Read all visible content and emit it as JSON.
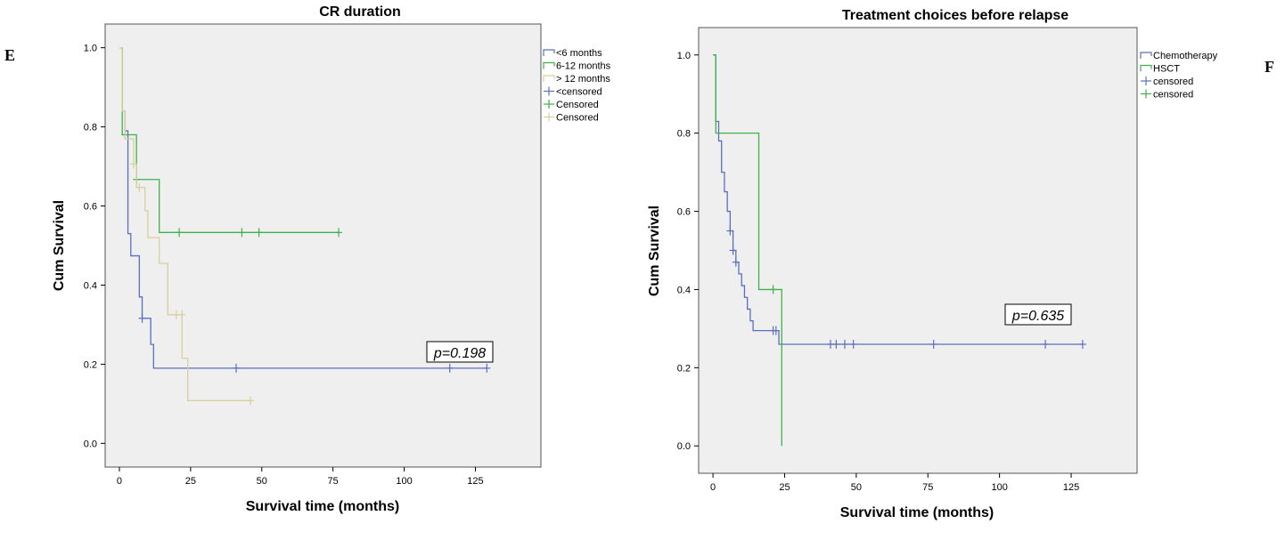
{
  "panels": {
    "left_letter": "E",
    "right_letter": "F"
  },
  "chart_data": [
    {
      "type": "line",
      "title": "CR duration",
      "xlabel": "Survival time (months)",
      "ylabel": "Cum Survival",
      "xlim": [
        -5,
        148
      ],
      "ylim": [
        -0.06,
        1.06
      ],
      "xticks": [
        0,
        25,
        50,
        75,
        100,
        125
      ],
      "yticks": [
        0.0,
        0.2,
        0.4,
        0.6,
        0.8,
        1.0
      ],
      "ytick_labels": [
        "0.0",
        "0.2",
        "0.4",
        "0.6",
        "0.8",
        "1.0"
      ],
      "annotation": "p=0.198",
      "annotation_pos": [
        130,
        0.21
      ],
      "legend_position": "right",
      "legend": [
        "<6 months",
        "6-12 months",
        "> 12 months",
        "<censored",
        "Censored",
        "Censored"
      ],
      "series": [
        {
          "name": "<6 months",
          "color": "#5b6fbf",
          "steps": [
            [
              0,
              1.0
            ],
            [
              1,
              0.84
            ],
            [
              2,
              0.79
            ],
            [
              3,
              0.53
            ],
            [
              4,
              0.474
            ],
            [
              7,
              0.37
            ],
            [
              8,
              0.316
            ],
            [
              11,
              0.25
            ],
            [
              12,
              0.19
            ],
            [
              129,
              0.19
            ]
          ],
          "censored": [
            [
              8,
              0.316
            ],
            [
              41,
              0.19
            ],
            [
              116,
              0.19
            ],
            [
              129,
              0.19
            ]
          ]
        },
        {
          "name": "6-12 months",
          "color": "#3fb14a",
          "steps": [
            [
              0,
              1.0
            ],
            [
              1,
              0.78
            ],
            [
              6,
              0.667
            ],
            [
              14,
              0.533
            ],
            [
              77,
              0.533
            ]
          ],
          "censored": [
            [
              2,
              0.78
            ],
            [
              6,
              0.667
            ],
            [
              21,
              0.533
            ],
            [
              43,
              0.533
            ],
            [
              49,
              0.533
            ],
            [
              77,
              0.533
            ]
          ]
        },
        {
          "name": "> 12 months",
          "color": "#d8cf9e",
          "steps": [
            [
              0,
              1.0
            ],
            [
              1,
              0.84
            ],
            [
              2,
              0.77
            ],
            [
              5,
              0.706
            ],
            [
              6,
              0.647
            ],
            [
              9,
              0.588
            ],
            [
              10,
              0.52
            ],
            [
              14,
              0.455
            ],
            [
              17,
              0.325
            ],
            [
              22,
              0.215
            ],
            [
              24,
              0.108
            ],
            [
              46,
              0.108
            ]
          ],
          "censored": [
            [
              5,
              0.706
            ],
            [
              7,
              0.647
            ],
            [
              20,
              0.325
            ],
            [
              22,
              0.325
            ],
            [
              46,
              0.108
            ]
          ]
        }
      ]
    },
    {
      "type": "line",
      "title": "Treatment choices before relapse",
      "xlabel": "Survival time (months)",
      "ylabel": "Cum Survival",
      "xlim": [
        -5,
        148
      ],
      "ylim": [
        -0.07,
        1.07
      ],
      "xticks": [
        0,
        25,
        50,
        75,
        100,
        125
      ],
      "yticks": [
        0.0,
        0.2,
        0.4,
        0.6,
        0.8,
        1.0
      ],
      "ytick_labels": [
        "0.0",
        "0.2",
        "0.4",
        "0.6",
        "0.8",
        "1.0"
      ],
      "annotation": "p=0.635",
      "annotation_pos": [
        125,
        0.35
      ],
      "legend_position": "right",
      "legend": [
        "Chemotherapy",
        "HSCT",
        "censored",
        "censored"
      ],
      "series": [
        {
          "name": "Chemotherapy",
          "color": "#5b6fbf",
          "steps": [
            [
              0,
              1.0
            ],
            [
              1,
              0.83
            ],
            [
              2,
              0.78
            ],
            [
              3,
              0.7
            ],
            [
              4,
              0.65
            ],
            [
              5,
              0.6
            ],
            [
              6,
              0.55
            ],
            [
              7,
              0.5
            ],
            [
              8,
              0.47
            ],
            [
              9,
              0.44
            ],
            [
              10,
              0.41
            ],
            [
              11,
              0.38
            ],
            [
              12,
              0.35
            ],
            [
              13,
              0.32
            ],
            [
              14,
              0.295
            ],
            [
              22,
              0.295
            ],
            [
              23,
              0.26
            ],
            [
              129,
              0.26
            ]
          ],
          "censored": [
            [
              6,
              0.55
            ],
            [
              7,
              0.5
            ],
            [
              8,
              0.47
            ],
            [
              21,
              0.295
            ],
            [
              22,
              0.295
            ],
            [
              41,
              0.26
            ],
            [
              43,
              0.26
            ],
            [
              46,
              0.26
            ],
            [
              49,
              0.26
            ],
            [
              77,
              0.26
            ],
            [
              116,
              0.26
            ],
            [
              129,
              0.26
            ]
          ]
        },
        {
          "name": "HSCT",
          "color": "#3fb14a",
          "steps": [
            [
              0,
              1.0
            ],
            [
              1,
              0.8
            ],
            [
              16,
              0.4
            ],
            [
              24,
              0.0
            ]
          ],
          "censored": [
            [
              21,
              0.4
            ]
          ]
        }
      ]
    }
  ]
}
